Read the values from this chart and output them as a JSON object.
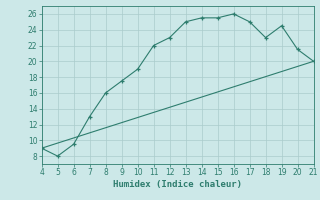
{
  "xlabel": "Humidex (Indice chaleur)",
  "line1_x": [
    4,
    5,
    6,
    7,
    8,
    9,
    10,
    11,
    12,
    13,
    14,
    15,
    16,
    17,
    18,
    19,
    20,
    21
  ],
  "line1_y": [
    9,
    8,
    9.5,
    13,
    16,
    17.5,
    19,
    22,
    23,
    25,
    25.5,
    25.5,
    26,
    25,
    23,
    24.5,
    21.5,
    20
  ],
  "line2_x": [
    4,
    21
  ],
  "line2_y": [
    9,
    20
  ],
  "color": "#2e7d6e",
  "bg_color": "#cce8e8",
  "grid_color": "#aacccc",
  "xlim": [
    4,
    21
  ],
  "ylim": [
    7,
    27
  ],
  "xticks": [
    4,
    5,
    6,
    7,
    8,
    9,
    10,
    11,
    12,
    13,
    14,
    15,
    16,
    17,
    18,
    19,
    20,
    21
  ],
  "yticks": [
    8,
    10,
    12,
    14,
    16,
    18,
    20,
    22,
    24,
    26
  ]
}
